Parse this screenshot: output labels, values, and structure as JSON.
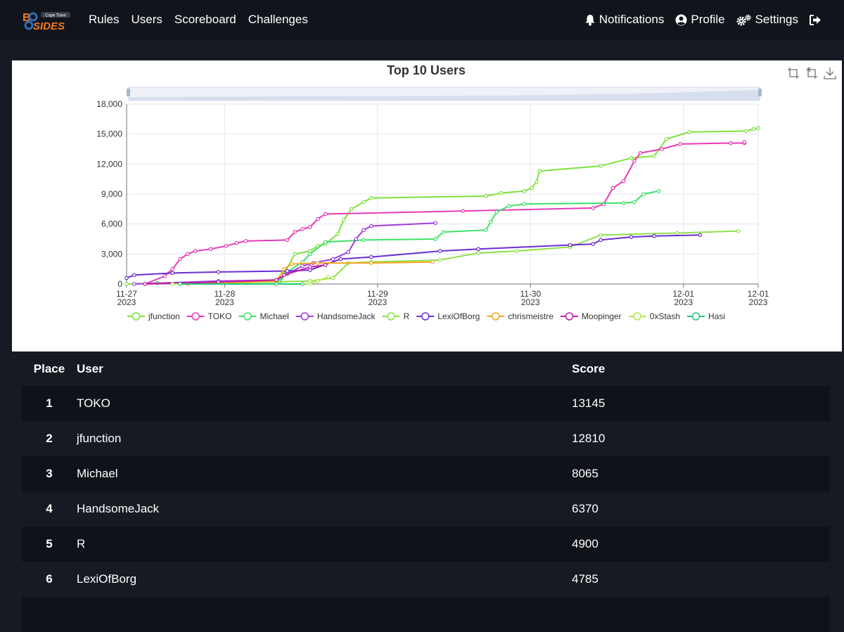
{
  "brand": {
    "top_letters": "B",
    "bottom_letters": "SIDES",
    "tagline": "Cape Town"
  },
  "nav": {
    "left": [
      "Rules",
      "Users",
      "Scoreboard",
      "Challenges"
    ],
    "notifications": "Notifications",
    "profile": "Profile",
    "settings": "Settings"
  },
  "icons": {
    "notifications": "bell-icon",
    "profile": "user-circle-icon",
    "settings": "gears-icon",
    "logout": "sign-out-icon",
    "toolbox": [
      "zoom-select-icon",
      "zoom-reset-icon",
      "save-image-icon"
    ]
  },
  "colors": {
    "page_bg": "#171a22",
    "navbar_bg": "#11141b",
    "row_odd": "#0f1218",
    "accent_orange": "#f47b20",
    "accent_blue": "#2e6fb5"
  },
  "chart_data": {
    "type": "line",
    "title": "Top 10 Users",
    "x_ticks": [
      {
        "value": 0,
        "line1": "11-27",
        "line2": "2023"
      },
      {
        "value": 0.641,
        "line1": "11-28",
        "line2": "2023"
      },
      {
        "value": 1.641,
        "line1": "11-29",
        "line2": "2023"
      },
      {
        "value": 2.641,
        "line1": "11-30",
        "line2": "2023"
      },
      {
        "value": 3.641,
        "line1": "12-01",
        "line2": "2023"
      },
      {
        "value": 4.13,
        "line1": "12-01",
        "line2": "2023"
      }
    ],
    "xlim": [
      0,
      4.13
    ],
    "ylim": [
      0,
      18000
    ],
    "y_ticks": [
      0,
      3000,
      6000,
      9000,
      12000,
      15000,
      18000
    ],
    "y_tick_labels": [
      "0",
      "3,000",
      "6,000",
      "9,000",
      "12,000",
      "15,000",
      "18,000"
    ],
    "series": [
      {
        "name": "jfunction",
        "color": "#7ce23c",
        "points": [
          [
            0,
            0
          ],
          [
            0.2,
            100
          ],
          [
            0.99,
            200
          ],
          [
            1.03,
            1000
          ],
          [
            1.1,
            3000
          ],
          [
            1.2,
            3300
          ],
          [
            1.25,
            3800
          ],
          [
            1.3,
            4000
          ],
          [
            1.38,
            5000
          ],
          [
            1.42,
            6400
          ],
          [
            1.47,
            7500
          ],
          [
            1.55,
            8200
          ],
          [
            1.6,
            8600
          ],
          [
            2.35,
            8800
          ],
          [
            2.45,
            9100
          ],
          [
            2.6,
            9300
          ],
          [
            2.65,
            9600
          ],
          [
            2.68,
            10200
          ],
          [
            2.7,
            11300
          ],
          [
            3.1,
            11800
          ],
          [
            3.3,
            12600
          ],
          [
            3.45,
            12800
          ],
          [
            3.53,
            14500
          ],
          [
            3.68,
            15200
          ],
          [
            4.05,
            15300
          ],
          [
            4.1,
            15500
          ],
          [
            4.13,
            15600
          ]
        ]
      },
      {
        "name": "TOKO",
        "color": "#e83ab8",
        "points": [
          [
            0.12,
            0
          ],
          [
            0.25,
            800
          ],
          [
            0.3,
            1500
          ],
          [
            0.35,
            2500
          ],
          [
            0.4,
            3000
          ],
          [
            0.45,
            3300
          ],
          [
            0.55,
            3500
          ],
          [
            0.65,
            3800
          ],
          [
            0.72,
            4100
          ],
          [
            0.78,
            4300
          ],
          [
            1.05,
            4400
          ],
          [
            1.1,
            5200
          ],
          [
            1.15,
            5500
          ],
          [
            1.2,
            5700
          ],
          [
            1.25,
            6500
          ],
          [
            1.3,
            7000
          ],
          [
            2.2,
            7300
          ],
          [
            3.05,
            7600
          ],
          [
            3.12,
            8000
          ],
          [
            3.18,
            9600
          ],
          [
            3.25,
            10300
          ],
          [
            3.32,
            12300
          ],
          [
            3.36,
            13100
          ],
          [
            3.5,
            13500
          ],
          [
            3.62,
            14000
          ],
          [
            3.95,
            14100
          ],
          [
            4.04,
            14100
          ],
          [
            4.04,
            14200
          ]
        ]
      },
      {
        "name": "Michael",
        "color": "#3ee068",
        "points": [
          [
            0.2,
            100
          ],
          [
            0.6,
            200
          ],
          [
            1.0,
            200
          ],
          [
            1.05,
            1200
          ],
          [
            1.15,
            2200
          ],
          [
            1.2,
            3000
          ],
          [
            1.3,
            4200
          ],
          [
            1.55,
            4400
          ],
          [
            2.02,
            4500
          ],
          [
            2.07,
            5200
          ],
          [
            2.35,
            5400
          ],
          [
            2.38,
            6200
          ],
          [
            2.42,
            7200
          ],
          [
            2.5,
            7800
          ],
          [
            2.6,
            8000
          ],
          [
            3.25,
            8100
          ],
          [
            3.32,
            8200
          ],
          [
            3.38,
            9000
          ],
          [
            3.48,
            9300
          ]
        ]
      },
      {
        "name": "HandsomeJack",
        "color": "#9d3ee0",
        "points": [
          [
            0.05,
            0
          ],
          [
            0.6,
            300
          ],
          [
            0.98,
            400
          ],
          [
            1.05,
            1000
          ],
          [
            1.15,
            1800
          ],
          [
            1.22,
            2100
          ],
          [
            1.35,
            2500
          ],
          [
            1.45,
            3200
          ],
          [
            1.5,
            4500
          ],
          [
            1.55,
            5400
          ],
          [
            1.6,
            5800
          ],
          [
            2.02,
            6100
          ]
        ]
      },
      {
        "name": "R",
        "color": "#8fe04a",
        "points": [
          [
            0.4,
            0
          ],
          [
            1.2,
            300
          ],
          [
            1.35,
            600
          ],
          [
            1.45,
            2100
          ],
          [
            1.6,
            2200
          ],
          [
            2.05,
            2400
          ],
          [
            2.3,
            3100
          ],
          [
            2.55,
            3300
          ],
          [
            2.9,
            3700
          ],
          [
            3.1,
            4900
          ],
          [
            3.6,
            5100
          ],
          [
            4.0,
            5300
          ]
        ]
      },
      {
        "name": "LexiOfBorg",
        "color": "#6a2ed4",
        "points": [
          [
            0,
            600
          ],
          [
            0.05,
            900
          ],
          [
            0.3,
            1100
          ],
          [
            0.6,
            1200
          ],
          [
            1.05,
            1300
          ],
          [
            1.2,
            1400
          ],
          [
            1.4,
            2500
          ],
          [
            1.6,
            2700
          ],
          [
            2.05,
            3300
          ],
          [
            2.3,
            3500
          ],
          [
            2.9,
            3900
          ],
          [
            3.05,
            4000
          ],
          [
            3.1,
            4400
          ],
          [
            3.3,
            4700
          ],
          [
            3.45,
            4800
          ],
          [
            3.75,
            4900
          ]
        ]
      },
      {
        "name": "chrismeistre",
        "color": "#f5a623",
        "points": [
          [
            0.4,
            0
          ],
          [
            0.98,
            300
          ],
          [
            1.03,
            1500
          ],
          [
            1.08,
            2000
          ],
          [
            1.25,
            2100
          ],
          [
            1.6,
            2100
          ],
          [
            2.0,
            2200
          ]
        ]
      },
      {
        "name": "Moopinger",
        "color": "#c41ca8",
        "points": [
          [
            0.12,
            0
          ],
          [
            0.6,
            200
          ],
          [
            0.98,
            400
          ],
          [
            1.03,
            900
          ],
          [
            1.2,
            1700
          ],
          [
            1.3,
            1900
          ]
        ]
      },
      {
        "name": "0xStash",
        "color": "#b4e84a",
        "points": [
          [
            0.3,
            0
          ],
          [
            0.98,
            0
          ],
          [
            1.2,
            0
          ],
          [
            1.25,
            300
          ],
          [
            1.32,
            700
          ]
        ]
      },
      {
        "name": "Hasi",
        "color": "#22c77a",
        "points": [
          [
            0.35,
            0
          ],
          [
            0.98,
            0
          ],
          [
            1.15,
            0
          ]
        ]
      }
    ]
  },
  "table": {
    "headers": {
      "place": "Place",
      "user": "User",
      "score": "Score"
    },
    "rows": [
      {
        "place": "1",
        "user": "TOKO",
        "score": "13145"
      },
      {
        "place": "2",
        "user": "jfunction",
        "score": "12810"
      },
      {
        "place": "3",
        "user": "Michael",
        "score": "8065"
      },
      {
        "place": "4",
        "user": "HandsomeJack",
        "score": "6370"
      },
      {
        "place": "5",
        "user": "R",
        "score": "4900"
      },
      {
        "place": "6",
        "user": "LexiOfBorg",
        "score": "4785"
      },
      {
        "place": "",
        "user": "",
        "score": ""
      }
    ]
  }
}
